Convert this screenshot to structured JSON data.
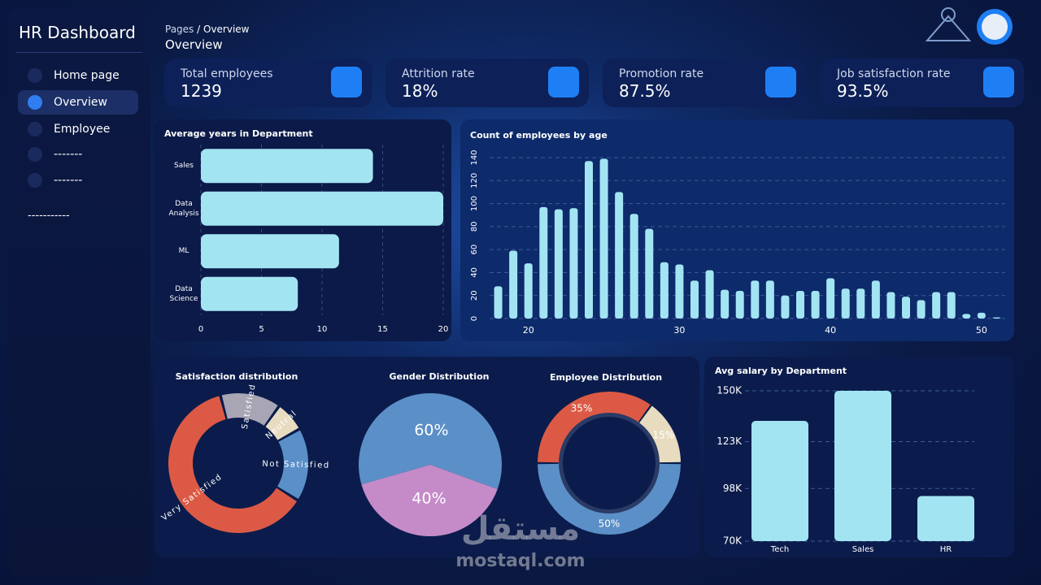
{
  "sidebar": {
    "title": "HR Dashboard",
    "menu": [
      "Home page",
      "Overview",
      "Employee",
      "-------",
      "-------"
    ],
    "footer": "-----------"
  },
  "breadcrumb": {
    "parent": "Pages",
    "current": "/ Overview",
    "page": "Overview"
  },
  "kpis": [
    {
      "label": "Total employees",
      "value": "1239"
    },
    {
      "label": "Attrition rate",
      "value": "18%"
    },
    {
      "label": "Promotion rate",
      "value": "87.5%"
    },
    {
      "label": "Job satisfaction rate",
      "value": "93.5%"
    }
  ],
  "chart_data": [
    {
      "type": "hbar",
      "title": "Average years in Department",
      "categories": [
        "Sales",
        "Data Analysis",
        "ML",
        "Data Science"
      ],
      "values": [
        14.2,
        20,
        11.4,
        8
      ],
      "color": "#a3e4f3",
      "xlim": [
        0,
        20
      ],
      "xticks": [
        0,
        5,
        10,
        15,
        20
      ],
      "grid": true
    },
    {
      "type": "bar",
      "title": "Count of employees by age",
      "x": [
        18,
        19,
        20,
        21,
        22,
        23,
        24,
        25,
        26,
        27,
        28,
        29,
        30,
        31,
        32,
        33,
        34,
        35,
        36,
        37,
        38,
        39,
        40,
        41,
        42,
        43,
        44,
        45,
        46,
        47,
        48,
        49,
        50,
        51
      ],
      "values": [
        28,
        59,
        48,
        97,
        95,
        96,
        137,
        139,
        110,
        91,
        78,
        49,
        47,
        33,
        42,
        25,
        24,
        33,
        33,
        20,
        24,
        24,
        35,
        26,
        26,
        33,
        23,
        19,
        16,
        23,
        23,
        4,
        5,
        1
      ],
      "color": "#a3e4f3",
      "xlim": [
        17,
        52
      ],
      "xticks": [
        20,
        30,
        40,
        50
      ],
      "ylim": [
        0,
        140
      ],
      "yticks": [
        0,
        20,
        40,
        60,
        80,
        100,
        120,
        140
      ],
      "grid": true
    },
    {
      "type": "donut",
      "title": "Satisfaction distribution",
      "categories": [
        "Very Satisfied",
        "Satisfied",
        "Neutral",
        "Not Satisfied"
      ],
      "values": [
        62,
        14,
        7,
        17
      ],
      "colors": [
        "#dc5a45",
        "#a8a5b4",
        "#e8dcc0",
        "#5b8fc7"
      ]
    },
    {
      "type": "pie",
      "title": "Gender Distribution",
      "values": [
        60,
        40
      ],
      "value_labels": [
        "60%",
        "40%"
      ],
      "colors": [
        "#5b8fc7",
        "#c48bc8"
      ]
    },
    {
      "type": "donut",
      "title": "Employee Distribution",
      "values": [
        35,
        15,
        50
      ],
      "value_labels": [
        "35%",
        "15%",
        "50%"
      ],
      "colors": [
        "#dc5a45",
        "#e8dcc0",
        "#5b8fc7"
      ]
    },
    {
      "type": "bar",
      "title": "Avg salary by Department",
      "categories": [
        "Tech",
        "Sales",
        "HR"
      ],
      "values": [
        134000,
        150000,
        94000
      ],
      "color": "#a3e4f3",
      "ylim": [
        70000,
        150000
      ],
      "yticks": [
        {
          "value": 70000,
          "label": "70K"
        },
        {
          "value": 98000,
          "label": "98K"
        },
        {
          "value": 123000,
          "label": "123K"
        },
        {
          "value": 150000,
          "label": "150K"
        }
      ],
      "grid": true
    }
  ],
  "watermark": [
    "مستقل",
    "mostaql.com"
  ]
}
